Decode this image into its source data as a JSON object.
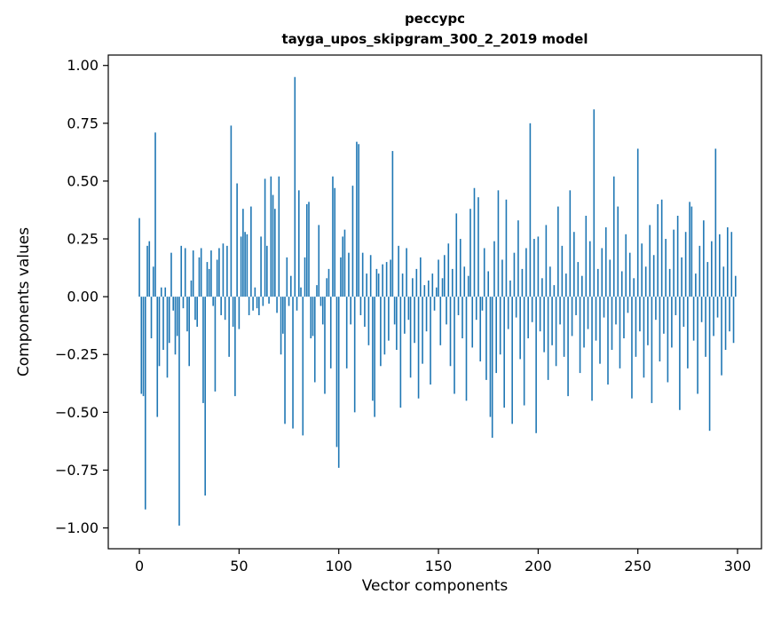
{
  "figure": {
    "title": "рессурс",
    "subtitle": "tayga_upos_skipgram_300_2_2019 model"
  },
  "chart_data": {
    "type": "bar",
    "title": "рессурс",
    "subtitle": "tayga_upos_skipgram_300_2_2019 model",
    "xlabel": "Vector components",
    "ylabel": "Components values",
    "bar_color": "#1f77b4",
    "xlim": [
      -15.6,
      312.0
    ],
    "ylim": [
      -1.09,
      1.045
    ],
    "xticks": [
      0,
      50,
      100,
      150,
      200,
      250,
      300
    ],
    "xtick_labels": [
      "0",
      "50",
      "100",
      "150",
      "200",
      "250",
      "300"
    ],
    "yticks": [
      1.0,
      0.75,
      0.5,
      0.25,
      0.0,
      -0.25,
      -0.5,
      -0.75,
      -1.0
    ],
    "ytick_labels": [
      "1.00",
      "0.75",
      "0.50",
      "0.25",
      "0.00",
      "−0.25",
      "−0.50",
      "−0.75",
      "−1.00"
    ],
    "x_start": 0,
    "grid": false,
    "legend": "none",
    "values": [
      0.34,
      -0.42,
      -0.43,
      -0.92,
      0.22,
      0.24,
      -0.18,
      0.13,
      0.71,
      -0.52,
      -0.3,
      0.04,
      -0.23,
      0.04,
      -0.35,
      -0.2,
      0.19,
      -0.06,
      -0.25,
      -0.17,
      -0.99,
      0.22,
      -0.05,
      0.21,
      -0.15,
      -0.3,
      0.07,
      0.2,
      -0.1,
      -0.13,
      0.17,
      0.21,
      -0.46,
      -0.86,
      0.15,
      0.12,
      0.2,
      -0.04,
      -0.41,
      0.16,
      0.21,
      -0.08,
      0.23,
      -0.1,
      0.22,
      -0.26,
      0.74,
      -0.13,
      -0.43,
      0.49,
      -0.14,
      0.26,
      0.38,
      0.28,
      0.27,
      -0.08,
      0.39,
      -0.06,
      0.04,
      -0.05,
      -0.08,
      0.26,
      -0.04,
      0.51,
      0.22,
      -0.03,
      0.52,
      0.44,
      0.38,
      -0.07,
      0.52,
      -0.25,
      -0.16,
      -0.55,
      0.17,
      -0.04,
      0.09,
      -0.57,
      0.95,
      -0.06,
      0.46,
      0.04,
      -0.6,
      0.17,
      0.4,
      0.41,
      -0.18,
      -0.17,
      -0.37,
      0.05,
      0.31,
      -0.04,
      -0.12,
      -0.42,
      0.08,
      0.12,
      -0.31,
      0.52,
      0.47,
      -0.65,
      -0.74,
      0.17,
      0.26,
      0.29,
      -0.31,
      0.19,
      -0.12,
      0.48,
      -0.5,
      0.67,
      0.66,
      -0.08,
      0.19,
      -0.13,
      0.1,
      -0.21,
      0.18,
      -0.45,
      -0.52,
      0.12,
      0.1,
      -0.3,
      0.14,
      -0.25,
      0.15,
      -0.19,
      0.16,
      0.63,
      -0.12,
      -0.23,
      0.22,
      -0.48,
      0.1,
      -0.16,
      0.21,
      -0.1,
      -0.35,
      0.08,
      -0.2,
      0.12,
      -0.44,
      0.17,
      -0.29,
      0.05,
      -0.15,
      0.07,
      -0.38,
      0.1,
      -0.06,
      0.04,
      0.16,
      -0.21,
      0.08,
      0.18,
      -0.12,
      0.23,
      -0.3,
      0.12,
      -0.42,
      0.36,
      -0.08,
      0.25,
      -0.18,
      0.13,
      -0.45,
      0.09,
      0.38,
      -0.22,
      0.47,
      -0.1,
      0.43,
      -0.28,
      -0.06,
      0.21,
      -0.36,
      0.11,
      -0.52,
      -0.61,
      0.24,
      -0.33,
      0.46,
      -0.25,
      0.16,
      -0.48,
      0.42,
      -0.14,
      0.07,
      -0.55,
      0.19,
      -0.09,
      0.33,
      -0.27,
      0.12,
      -0.47,
      0.21,
      -0.18,
      0.75,
      -0.11,
      0.25,
      -0.59,
      0.26,
      -0.15,
      0.08,
      -0.24,
      0.31,
      -0.36,
      0.13,
      -0.21,
      0.05,
      -0.3,
      0.39,
      -0.12,
      0.22,
      -0.26,
      0.1,
      -0.43,
      0.46,
      -0.17,
      0.28,
      -0.08,
      0.15,
      -0.33,
      0.09,
      -0.22,
      0.35,
      -0.14,
      0.24,
      -0.45,
      0.81,
      -0.19,
      0.12,
      -0.29,
      0.21,
      -0.09,
      0.3,
      -0.38,
      0.16,
      -0.23,
      0.52,
      -0.12,
      0.39,
      -0.31,
      0.11,
      -0.18,
      0.27,
      -0.07,
      0.19,
      -0.44,
      0.08,
      -0.26,
      0.64,
      -0.15,
      0.23,
      -0.35,
      0.13,
      -0.21,
      0.31,
      -0.46,
      0.18,
      -0.1,
      0.4,
      -0.28,
      0.42,
      -0.16,
      0.25,
      -0.37,
      0.12,
      -0.22,
      0.29,
      -0.08,
      0.35,
      -0.49,
      0.17,
      -0.13,
      0.28,
      -0.31,
      0.41,
      0.39,
      -0.19,
      0.1,
      -0.42,
      0.22,
      -0.11,
      0.33,
      -0.26,
      0.15,
      -0.58,
      0.24,
      -0.17,
      0.64,
      -0.09,
      0.27,
      -0.34,
      0.13,
      -0.23,
      0.3,
      -0.15,
      0.28,
      -0.2,
      0.09
    ]
  }
}
